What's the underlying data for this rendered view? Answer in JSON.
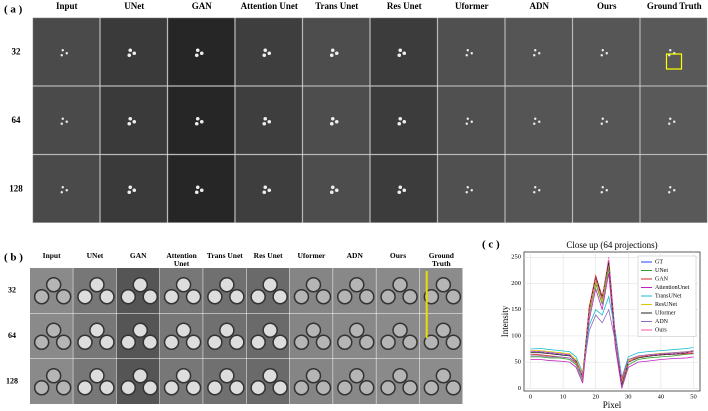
{
  "panel_a": {
    "label": "( a )",
    "columns": [
      "Input",
      "UNet",
      "GAN",
      "Attention Unet",
      "Trans Unet",
      "Res Unet",
      "Uformer",
      "ADN",
      "Ours",
      "Ground Truth"
    ],
    "rows": [
      "32",
      "64",
      "128"
    ]
  },
  "panel_b": {
    "label": "( b )",
    "columns": [
      "Input",
      "UNet",
      "GAN",
      "Attention Unet",
      "Trans Unet",
      "Res Unet",
      "Uformer",
      "ADN",
      "Ours",
      "Ground Truth"
    ],
    "rows": [
      "32",
      "64",
      "128"
    ]
  },
  "chart_data": {
    "type": "line",
    "panel_label": "( c )",
    "title": "Close up (64 projections)",
    "x_label": "Pixel",
    "y_label": "Intensity",
    "x": [
      0,
      3,
      6,
      9,
      12,
      14,
      16,
      18,
      20,
      22,
      24,
      26,
      28,
      30,
      33,
      36,
      40,
      44,
      48,
      50
    ],
    "series": [
      {
        "name": "GT",
        "color": "#2040ff",
        "values": [
          70,
          70,
          68,
          66,
          64,
          50,
          20,
          150,
          210,
          170,
          245,
          100,
          10,
          50,
          60,
          62,
          65,
          66,
          68,
          70
        ]
      },
      {
        "name": "UNet",
        "color": "#2ca02c",
        "values": [
          60,
          60,
          58,
          58,
          55,
          45,
          15,
          140,
          200,
          160,
          230,
          90,
          5,
          45,
          55,
          58,
          60,
          62,
          65,
          66
        ]
      },
      {
        "name": "GAN",
        "color": "#d62728",
        "values": [
          65,
          64,
          62,
          60,
          58,
          48,
          25,
          155,
          215,
          175,
          240,
          95,
          15,
          55,
          60,
          62,
          64,
          65,
          66,
          67
        ]
      },
      {
        "name": "AttentionUnet",
        "color": "#c020c0",
        "values": [
          55,
          55,
          53,
          52,
          50,
          40,
          10,
          130,
          190,
          150,
          220,
          80,
          0,
          40,
          50,
          52,
          55,
          57,
          58,
          60
        ]
      },
      {
        "name": "TransUNet",
        "color": "#17becf",
        "values": [
          75,
          76,
          74,
          72,
          70,
          60,
          30,
          120,
          150,
          140,
          175,
          110,
          20,
          60,
          68,
          70,
          72,
          74,
          76,
          78
        ]
      },
      {
        "name": "ResUNet",
        "color": "#e0c000",
        "values": [
          72,
          72,
          70,
          68,
          66,
          55,
          28,
          145,
          205,
          165,
          238,
          100,
          12,
          52,
          60,
          64,
          67,
          68,
          70,
          72
        ]
      },
      {
        "name": "Uformer",
        "color": "#222222",
        "values": [
          68,
          68,
          66,
          64,
          62,
          52,
          22,
          150,
          212,
          172,
          242,
          98,
          8,
          50,
          58,
          61,
          64,
          65,
          68,
          70
        ]
      },
      {
        "name": "ADN",
        "color": "#9467bd",
        "values": [
          62,
          62,
          60,
          60,
          58,
          50,
          25,
          110,
          140,
          125,
          150,
          90,
          20,
          55,
          62,
          64,
          66,
          68,
          70,
          72
        ]
      },
      {
        "name": "Ours",
        "color": "#ff4fa0",
        "values": [
          70,
          70,
          68,
          66,
          64,
          50,
          20,
          150,
          210,
          170,
          250,
          100,
          10,
          50,
          60,
          62,
          65,
          66,
          68,
          70
        ]
      }
    ],
    "xlim": [
      -2,
      52
    ],
    "xticks": [
      0,
      10,
      20,
      30,
      40,
      50
    ],
    "ylim": [
      -5,
      260
    ],
    "yticks": [
      0,
      50,
      100,
      150,
      200,
      250
    ],
    "grid": true,
    "legend": "upper right"
  }
}
